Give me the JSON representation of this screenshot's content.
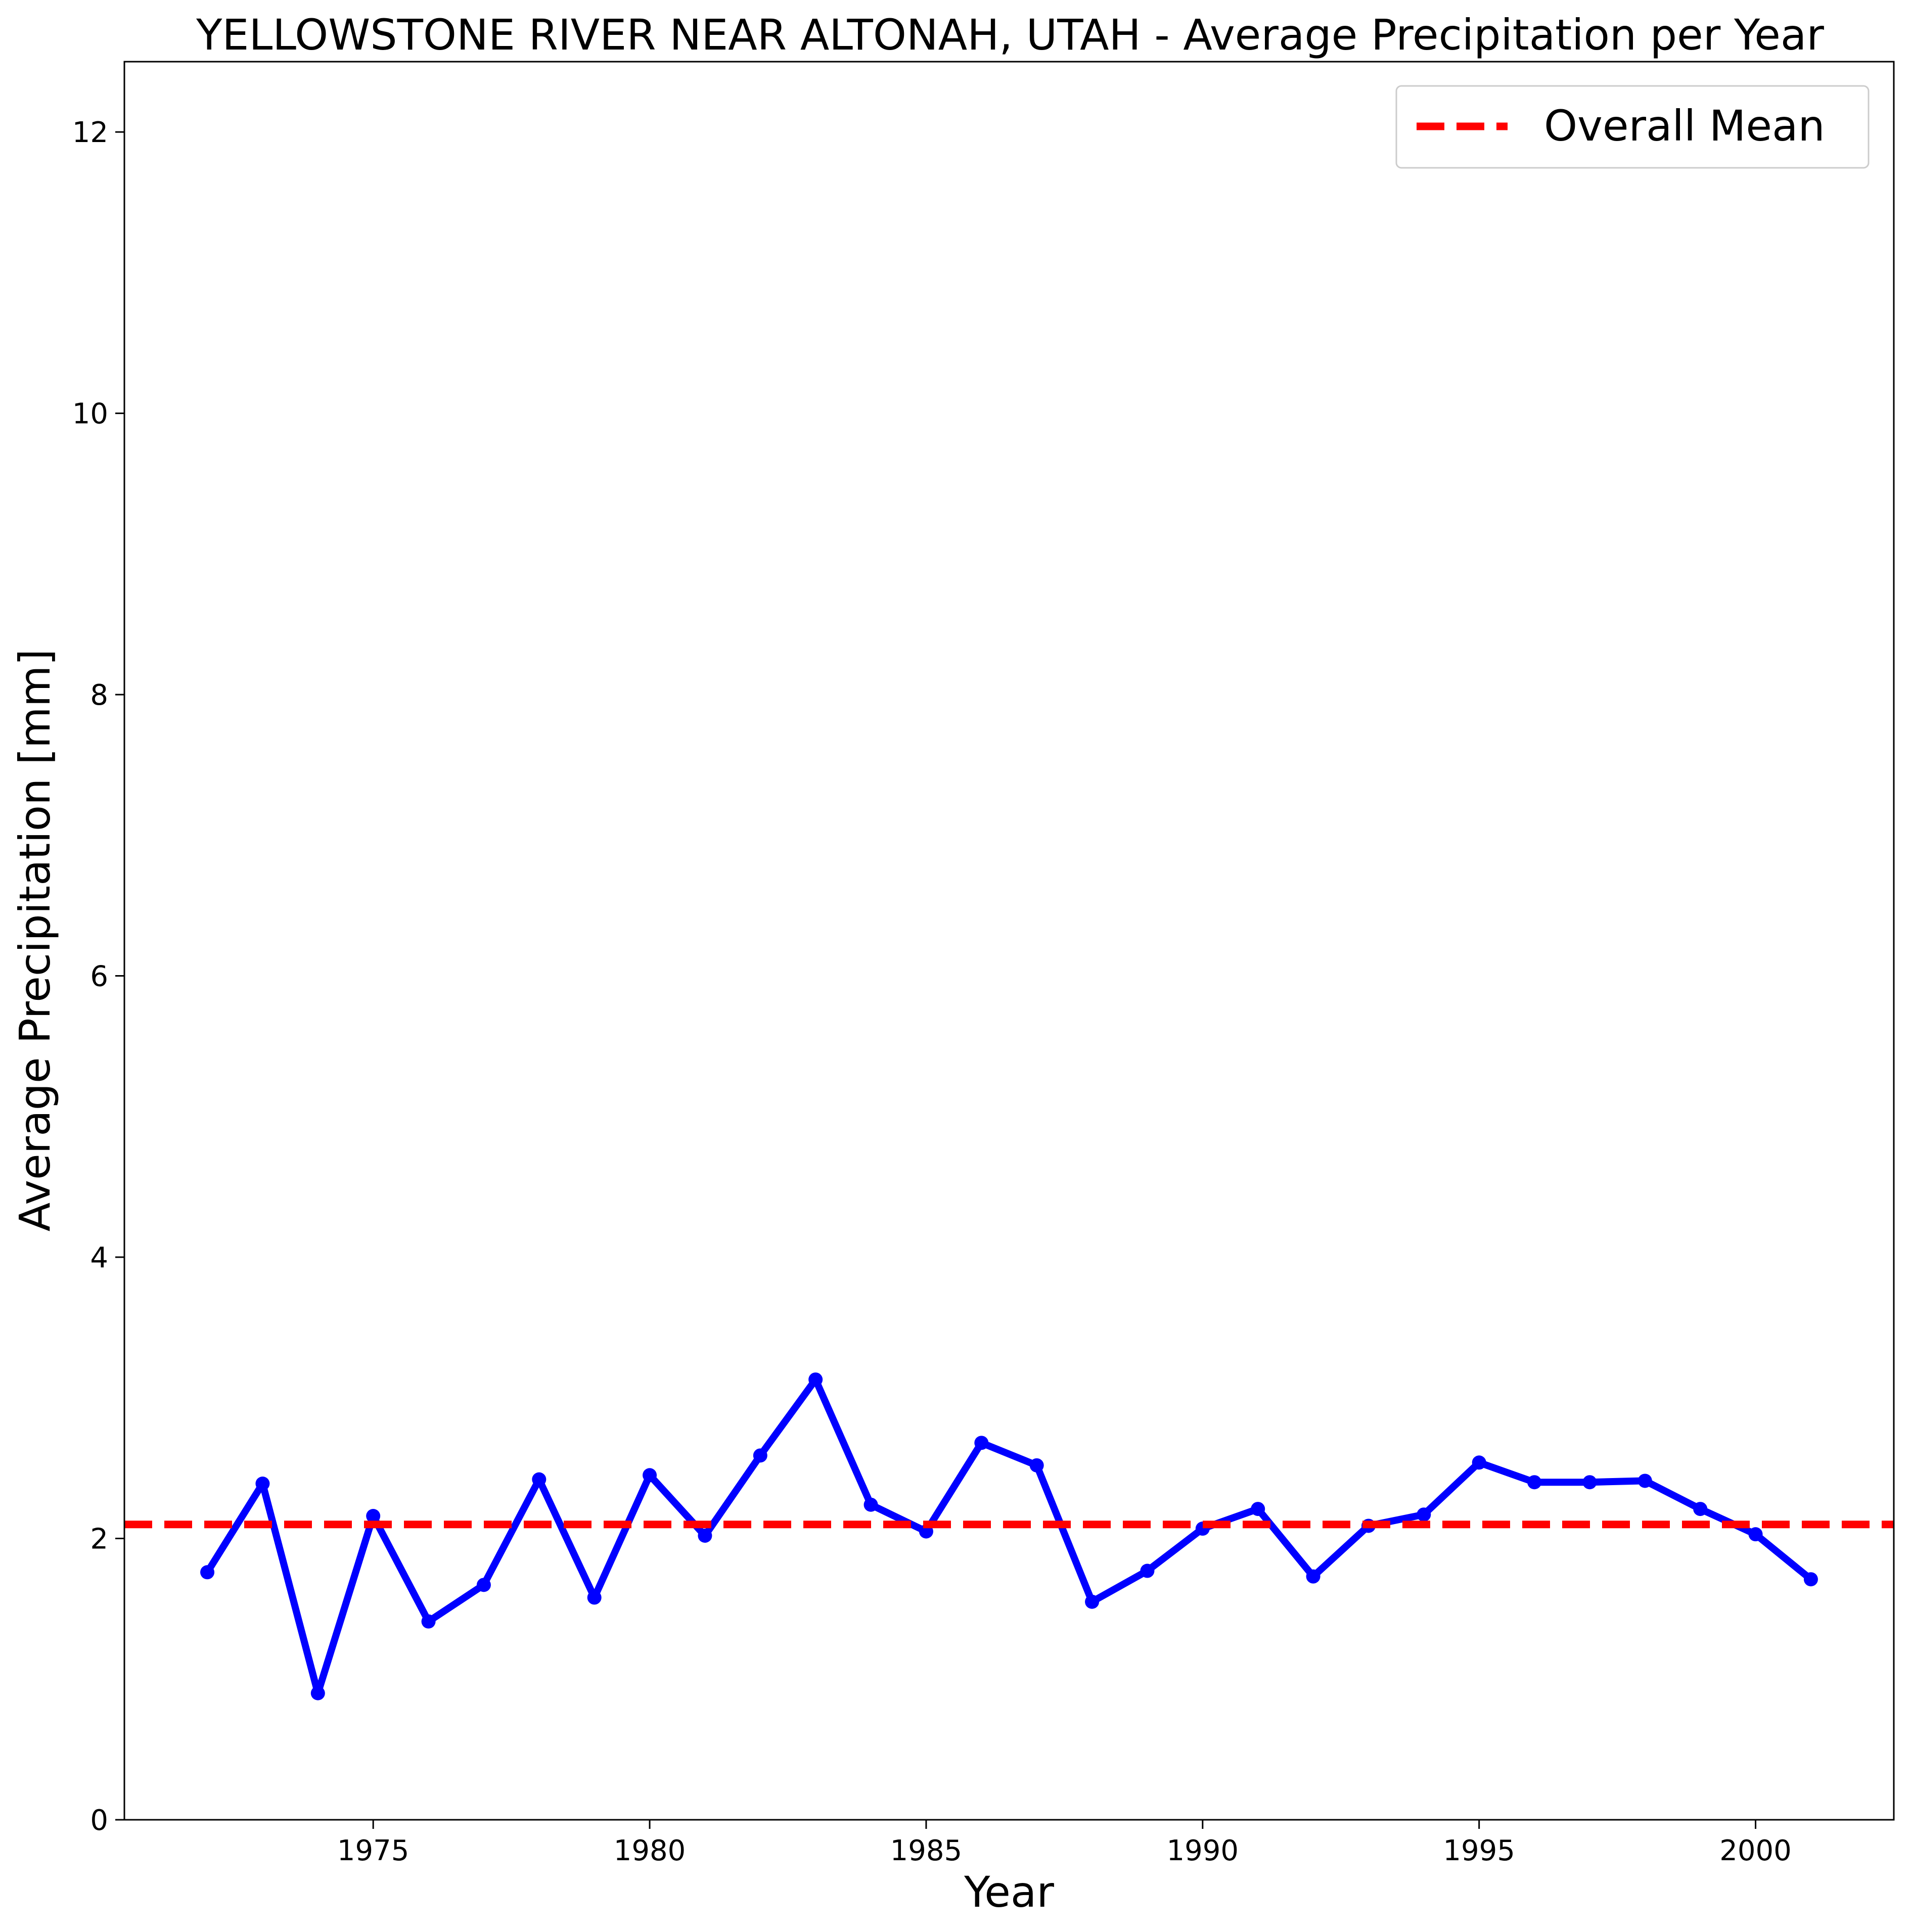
{
  "chart_data": {
    "type": "line",
    "title": "YELLOWSTONE RIVER NEAR ALTONAH, UTAH - Average Precipitation per Year",
    "xlabel": "Year",
    "ylabel": "Average Precipitation [mm]",
    "xlim": [
      1970.5,
      2002.5
    ],
    "ylim": [
      0,
      12.5
    ],
    "xticks": [
      1975,
      1980,
      1985,
      1990,
      1995,
      2000
    ],
    "yticks": [
      0,
      2,
      4,
      6,
      8,
      10,
      12
    ],
    "grid": false,
    "legend_position": "upper right",
    "series": [
      {
        "x": [
          1972,
          1973,
          1974,
          1975,
          1976,
          1977,
          1978,
          1979,
          1980,
          1981,
          1982,
          1983,
          1984,
          1985,
          1986,
          1987,
          1988,
          1989,
          1990,
          1991,
          1992,
          1993,
          1994,
          1995,
          1996,
          1997,
          1998,
          1999,
          2000,
          2001
        ],
        "values": [
          1.76,
          2.39,
          0.9,
          2.16,
          1.41,
          1.67,
          2.42,
          1.58,
          2.45,
          2.02,
          2.59,
          3.13,
          2.24,
          2.05,
          2.68,
          2.52,
          1.55,
          1.77,
          2.07,
          2.21,
          1.73,
          2.09,
          2.17,
          2.54,
          2.4,
          2.4,
          2.41,
          2.21,
          2.03,
          1.71
        ],
        "color": "#0000ff"
      },
      {
        "name": "Overall Mean",
        "type": "hline",
        "value": 2.1,
        "color": "#ff0000",
        "linestyle": "dashed"
      }
    ]
  }
}
